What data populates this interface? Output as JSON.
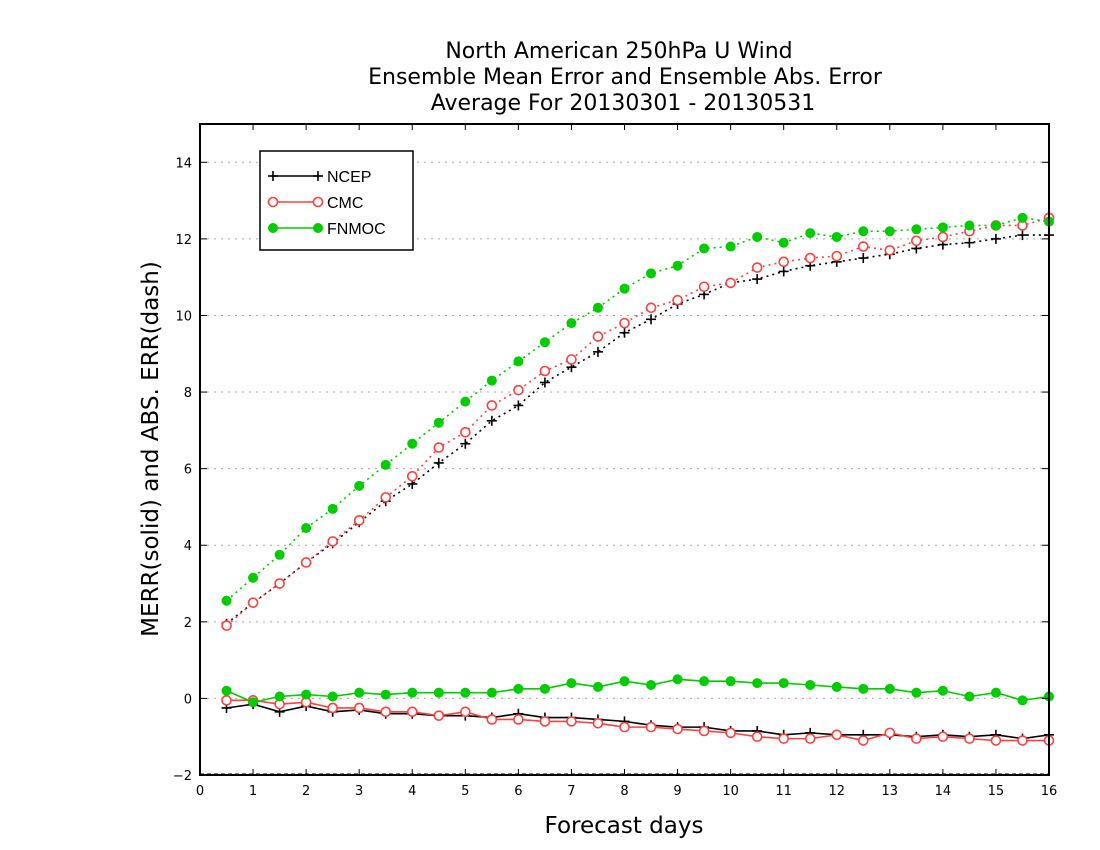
{
  "chart_data": {
    "type": "line",
    "title_lines": [
      "North American 250hPa U Wind",
      "Ensemble Mean Error and Ensemble Abs. Error",
      "Average For 20130301 - 20130531"
    ],
    "xlabel": "Forecast days",
    "ylabel": "MERR(solid) and ABS. ERR(dash)",
    "xlim": [
      0,
      16
    ],
    "ylim": [
      -2,
      15
    ],
    "x_ticks": [
      0,
      1,
      2,
      3,
      4,
      5,
      6,
      7,
      8,
      9,
      10,
      11,
      12,
      13,
      14,
      15,
      16
    ],
    "y_ticks": [
      -2,
      0,
      2,
      4,
      6,
      8,
      10,
      12,
      14
    ],
    "grid": "horizontal dotted",
    "legend_position": "top-left",
    "x": [
      0.5,
      1,
      1.5,
      2,
      2.5,
      3,
      3.5,
      4,
      4.5,
      5,
      5.5,
      6,
      6.5,
      7,
      7.5,
      8,
      8.5,
      9,
      9.5,
      10,
      10.5,
      11,
      11.5,
      12,
      12.5,
      13,
      13.5,
      14,
      14.5,
      15,
      15.5,
      16
    ],
    "series": [
      {
        "name": "NCEP",
        "color": "#000000",
        "marker": "plus",
        "merr": [
          -0.25,
          -0.15,
          -0.35,
          -0.2,
          -0.35,
          -0.3,
          -0.4,
          -0.4,
          -0.45,
          -0.45,
          -0.5,
          -0.4,
          -0.5,
          -0.5,
          -0.55,
          -0.6,
          -0.7,
          -0.75,
          -0.75,
          -0.85,
          -0.85,
          -0.95,
          -0.9,
          -0.95,
          -0.95,
          -0.95,
          -1.0,
          -0.95,
          -1.0,
          -0.95,
          -1.05,
          -0.95
        ],
        "abs_err": [
          1.95,
          2.5,
          3.0,
          3.55,
          4.05,
          4.6,
          5.15,
          5.6,
          6.15,
          6.65,
          7.25,
          7.65,
          8.25,
          8.65,
          9.05,
          9.55,
          9.9,
          10.3,
          10.55,
          10.85,
          10.95,
          11.15,
          11.3,
          11.4,
          11.5,
          11.6,
          11.75,
          11.85,
          11.9,
          12.0,
          12.1,
          12.1
        ]
      },
      {
        "name": "CMC",
        "color": "#ff4040",
        "marker": "open-circle",
        "merr": [
          -0.05,
          -0.05,
          -0.15,
          -0.1,
          -0.25,
          -0.25,
          -0.35,
          -0.35,
          -0.45,
          -0.35,
          -0.55,
          -0.55,
          -0.6,
          -0.6,
          -0.65,
          -0.75,
          -0.75,
          -0.8,
          -0.85,
          -0.9,
          -1.0,
          -1.05,
          -1.05,
          -0.95,
          -1.1,
          -0.9,
          -1.05,
          -1.0,
          -1.05,
          -1.1,
          -1.1,
          -1.1
        ],
        "abs_err": [
          1.9,
          2.5,
          3.0,
          3.55,
          4.1,
          4.65,
          5.25,
          5.8,
          6.55,
          6.95,
          7.65,
          8.05,
          8.55,
          8.85,
          9.45,
          9.8,
          10.2,
          10.4,
          10.75,
          10.85,
          11.25,
          11.4,
          11.5,
          11.55,
          11.8,
          11.7,
          11.95,
          12.05,
          12.2,
          12.35,
          12.35,
          12.55
        ]
      },
      {
        "name": "FNMOC",
        "color": "#00cc00",
        "marker": "filled-circle",
        "merr": [
          0.2,
          -0.1,
          0.05,
          0.1,
          0.05,
          0.15,
          0.1,
          0.15,
          0.15,
          0.15,
          0.15,
          0.25,
          0.25,
          0.4,
          0.3,
          0.45,
          0.35,
          0.5,
          0.45,
          0.45,
          0.4,
          0.4,
          0.35,
          0.3,
          0.25,
          0.25,
          0.15,
          0.2,
          0.05,
          0.15,
          -0.05,
          0.05
        ],
        "abs_err": [
          2.55,
          3.15,
          3.75,
          4.45,
          4.95,
          5.55,
          6.1,
          6.65,
          7.2,
          7.75,
          8.3,
          8.8,
          9.3,
          9.8,
          10.2,
          10.7,
          11.1,
          11.3,
          11.75,
          11.8,
          12.05,
          11.9,
          12.15,
          12.05,
          12.2,
          12.2,
          12.25,
          12.3,
          12.35,
          12.35,
          12.55,
          12.45
        ]
      }
    ]
  }
}
